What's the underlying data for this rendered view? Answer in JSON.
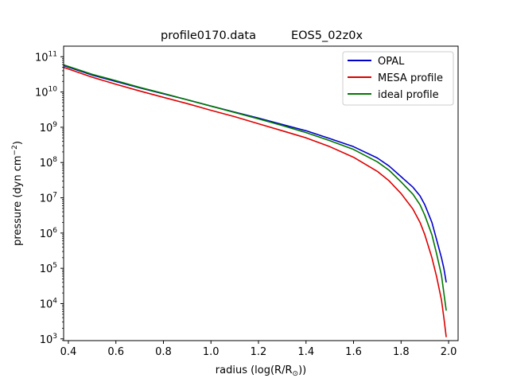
{
  "chart_data": {
    "type": "line",
    "title_left": "profile0170.data",
    "title_right": "EOS5_02z0x",
    "xlabel": "radius (log(R/R",
    "xlabel_sub": "⊙",
    "xlabel_end": "))",
    "ylabel": "pressure (dyn cm",
    "ylabel_sup": "−2",
    "ylabel_end": ")",
    "xlim": [
      0.38,
      2.04
    ],
    "ylim_log10": [
      2.95,
      11.3
    ],
    "y_scale": "log",
    "grid": false,
    "legend_position": "top-right",
    "x_ticks": [
      {
        "value": 0.4,
        "label": "0.4"
      },
      {
        "value": 0.6,
        "label": "0.6"
      },
      {
        "value": 0.8,
        "label": "0.8"
      },
      {
        "value": 1.0,
        "label": "1.0"
      },
      {
        "value": 1.2,
        "label": "1.2"
      },
      {
        "value": 1.4,
        "label": "1.4"
      },
      {
        "value": 1.6,
        "label": "1.6"
      },
      {
        "value": 1.8,
        "label": "1.8"
      },
      {
        "value": 2.0,
        "label": "2.0"
      }
    ],
    "y_ticks": [
      {
        "exp": 3,
        "base": "10",
        "sup": "3"
      },
      {
        "exp": 4,
        "base": "10",
        "sup": "4"
      },
      {
        "exp": 5,
        "base": "10",
        "sup": "5"
      },
      {
        "exp": 6,
        "base": "10",
        "sup": "6"
      },
      {
        "exp": 7,
        "base": "10",
        "sup": "7"
      },
      {
        "exp": 8,
        "base": "10",
        "sup": "8"
      },
      {
        "exp": 9,
        "base": "10",
        "sup": "9"
      },
      {
        "exp": 10,
        "base": "10",
        "sup": "10"
      },
      {
        "exp": 11,
        "base": "10",
        "sup": "11"
      }
    ],
    "series": [
      {
        "name": "OPAL",
        "color": "#0000cc",
        "x": [
          0.38,
          0.5,
          0.6,
          0.7,
          0.8,
          0.9,
          1.0,
          1.1,
          1.2,
          1.3,
          1.4,
          1.5,
          1.6,
          1.7,
          1.75,
          1.8,
          1.85,
          1.88,
          1.9,
          1.93,
          1.95,
          1.97,
          1.98,
          1.99
        ],
        "log_y": [
          10.75,
          10.48,
          10.3,
          10.12,
          9.95,
          9.78,
          9.6,
          9.43,
          9.26,
          9.08,
          8.9,
          8.68,
          8.45,
          8.13,
          7.9,
          7.6,
          7.3,
          7.05,
          6.8,
          6.3,
          5.8,
          5.3,
          5.0,
          4.6
        ]
      },
      {
        "name": "MESA profile",
        "color": "#dd0000",
        "x": [
          0.38,
          0.5,
          0.6,
          0.7,
          0.8,
          0.9,
          1.0,
          1.1,
          1.2,
          1.3,
          1.4,
          1.5,
          1.6,
          1.7,
          1.75,
          1.8,
          1.85,
          1.88,
          1.9,
          1.93,
          1.95,
          1.97,
          1.98,
          1.99
        ],
        "log_y": [
          10.7,
          10.42,
          10.22,
          10.03,
          9.85,
          9.67,
          9.48,
          9.3,
          9.1,
          8.9,
          8.7,
          8.45,
          8.15,
          7.75,
          7.48,
          7.12,
          6.68,
          6.3,
          5.95,
          5.3,
          4.75,
          4.1,
          3.6,
          3.05
        ]
      },
      {
        "name": "ideal profile",
        "color": "#007700",
        "x": [
          0.38,
          0.5,
          0.6,
          0.7,
          0.8,
          0.9,
          1.0,
          1.1,
          1.2,
          1.3,
          1.4,
          1.5,
          1.6,
          1.7,
          1.75,
          1.8,
          1.85,
          1.88,
          1.9,
          1.93,
          1.95,
          1.97,
          1.98,
          1.99
        ],
        "log_y": [
          10.77,
          10.5,
          10.32,
          10.13,
          9.96,
          9.78,
          9.6,
          9.42,
          9.24,
          9.05,
          8.85,
          8.62,
          8.37,
          8.02,
          7.78,
          7.45,
          7.1,
          6.8,
          6.5,
          5.95,
          5.4,
          4.8,
          4.3,
          3.8
        ]
      }
    ]
  }
}
